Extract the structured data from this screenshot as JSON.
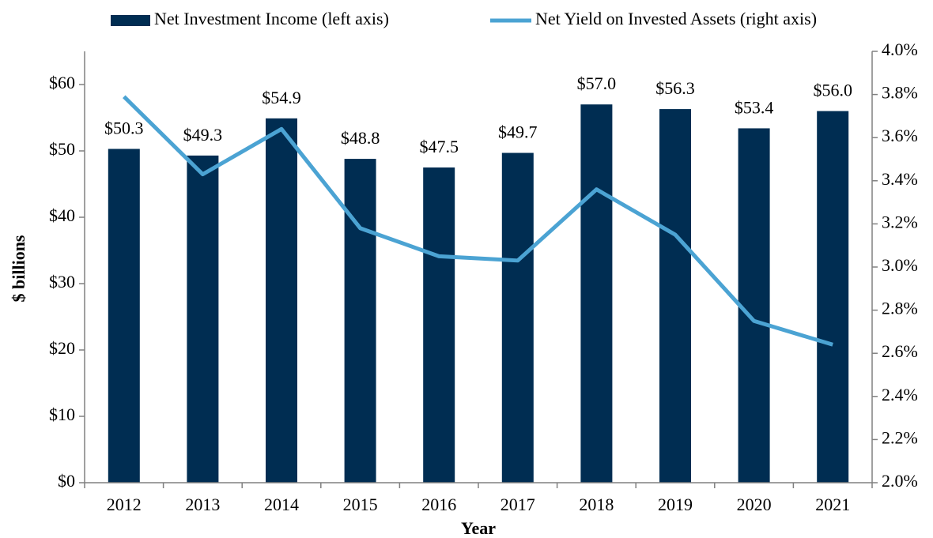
{
  "chart_data": {
    "type": "bar",
    "y_label": "$ billions",
    "x_label": "Year",
    "categories": [
      "2012",
      "2013",
      "2014",
      "2015",
      "2016",
      "2017",
      "2018",
      "2019",
      "2020",
      "2021"
    ],
    "series": [
      {
        "name": "Net Investment Income (left axis)",
        "type": "bar",
        "color": "#002d52",
        "values": [
          50.3,
          49.3,
          54.9,
          48.8,
          47.5,
          49.7,
          57.0,
          56.3,
          53.4,
          56.0
        ],
        "value_labels": [
          "$50.3",
          "$49.3",
          "$54.9",
          "$48.8",
          "$47.5",
          "$49.7",
          "$57.0",
          "$56.3",
          "$53.4",
          "$56.0"
        ]
      },
      {
        "name": "Net Yield on Invested Assets (right axis)",
        "type": "line",
        "color": "#4ba3d3",
        "axis": "y2",
        "values": [
          3.79,
          3.43,
          3.64,
          3.18,
          3.05,
          3.03,
          3.36,
          3.15,
          2.75,
          2.64
        ]
      }
    ],
    "ylim": [
      0,
      65
    ],
    "yticks": [
      {
        "value": 0,
        "label": "$0"
      },
      {
        "value": 10,
        "label": "$10"
      },
      {
        "value": 20,
        "label": "$20"
      },
      {
        "value": 30,
        "label": "$30"
      },
      {
        "value": 40,
        "label": "$40"
      },
      {
        "value": 50,
        "label": "$50"
      },
      {
        "value": 60,
        "label": "$60"
      }
    ],
    "y2lim": [
      2.0,
      4.0
    ],
    "y2ticks": [
      {
        "value": 2.0,
        "label": "2.0%"
      },
      {
        "value": 2.2,
        "label": "2.2%"
      },
      {
        "value": 2.4,
        "label": "2.4%"
      },
      {
        "value": 2.6,
        "label": "2.6%"
      },
      {
        "value": 2.8,
        "label": "2.8%"
      },
      {
        "value": 3.0,
        "label": "3.0%"
      },
      {
        "value": 3.2,
        "label": "3.2%"
      },
      {
        "value": 3.4,
        "label": "3.4%"
      },
      {
        "value": 3.6,
        "label": "3.6%"
      },
      {
        "value": 3.8,
        "label": "3.8%"
      },
      {
        "value": 4.0,
        "label": "4.0%"
      }
    ],
    "legend": "top"
  }
}
